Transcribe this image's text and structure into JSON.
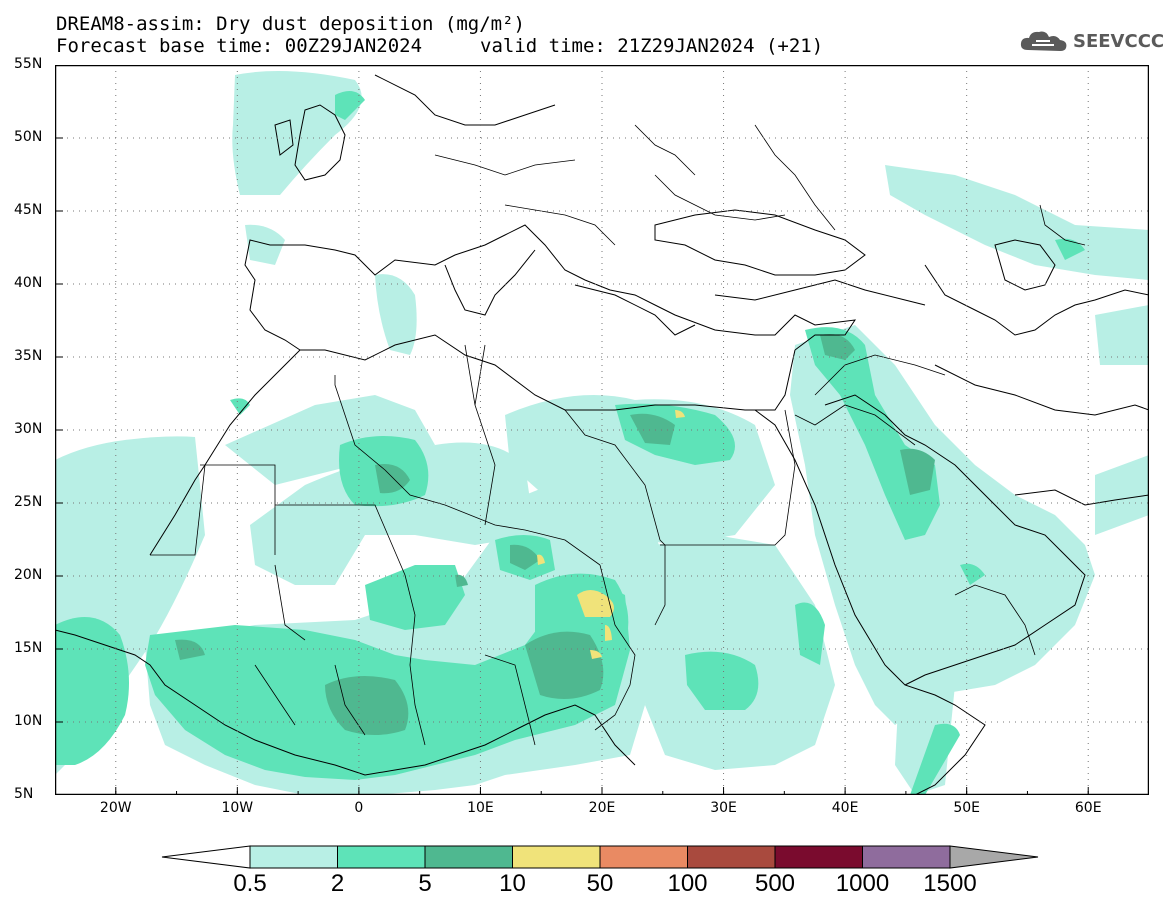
{
  "title": {
    "line1": "DREAM8-assim: Dry dust deposition (mg/m²)",
    "line2a": "Forecast base time: 00Z29JAN2024",
    "line2b": "valid time: 21Z29JAN2024 (+21)"
  },
  "logo": {
    "text": "SEEVCCC",
    "icon": "cloud-icon"
  },
  "axes": {
    "lat_labels": [
      "55N",
      "50N",
      "45N",
      "40N",
      "35N",
      "30N",
      "25N",
      "20N",
      "15N",
      "10N",
      "5N"
    ],
    "lon_labels": [
      "20W",
      "10W",
      "0",
      "10E",
      "20E",
      "30E",
      "40E",
      "50E",
      "60E"
    ],
    "lat_range": [
      5,
      55
    ],
    "lon_range": [
      -25,
      65
    ],
    "grid": "dotted"
  },
  "colorbar": {
    "labels": [
      "0.5",
      "2",
      "5",
      "10",
      "50",
      "100",
      "500",
      "1000",
      "1500"
    ],
    "colors": [
      "#ffffff",
      "#b8efe5",
      "#5ee3b8",
      "#4fb890",
      "#f0e37a",
      "#e98a63",
      "#a94a3e",
      "#7a0b2e",
      "#8f6c9d",
      "#a8a8a8"
    ]
  }
}
